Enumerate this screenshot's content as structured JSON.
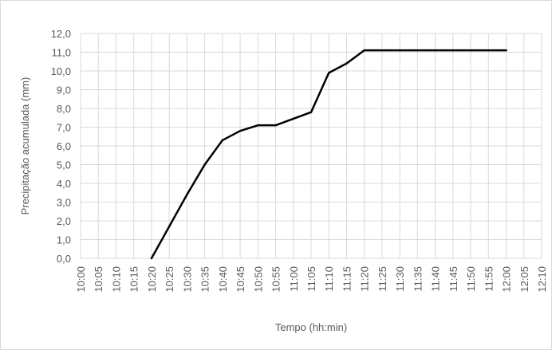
{
  "chart_data": {
    "type": "line",
    "title": "",
    "xlabel": "Tempo (hh:min)",
    "ylabel": "Precipitação acumulada (mm)",
    "ylim": [
      0,
      12
    ],
    "y_ticks": [
      "0,0",
      "1,0",
      "2,0",
      "3,0",
      "4,0",
      "5,0",
      "6,0",
      "7,0",
      "8,0",
      "9,0",
      "10,0",
      "11,0",
      "12,0"
    ],
    "x_ticks": [
      "10:00",
      "10:05",
      "10:10",
      "10:15",
      "10:20",
      "10:25",
      "10:30",
      "10:35",
      "10:40",
      "10:45",
      "10:50",
      "10:55",
      "11:00",
      "11:05",
      "11:10",
      "11:15",
      "11:20",
      "11:25",
      "11:30",
      "11:35",
      "11:40",
      "11:45",
      "11:50",
      "11:55",
      "12:00",
      "12:05",
      "12:10"
    ],
    "grid": true,
    "legend": "none",
    "series": [
      {
        "color": "#000000",
        "x": [
          "10:20",
          "10:25",
          "10:30",
          "10:35",
          "10:40",
          "10:45",
          "10:50",
          "10:55",
          "11:00",
          "11:05",
          "11:10",
          "11:15",
          "11:20",
          "11:25",
          "11:30",
          "11:35",
          "11:40",
          "11:45",
          "11:50",
          "11:55",
          "12:00"
        ],
        "y": [
          0.0,
          1.7,
          3.4,
          5.0,
          6.3,
          6.8,
          7.1,
          7.1,
          7.45,
          7.8,
          9.9,
          10.4,
          11.1,
          11.1,
          11.1,
          11.1,
          11.1,
          11.1,
          11.1,
          11.1,
          11.1
        ]
      }
    ],
    "colors": {
      "grid": "#d9d9d9",
      "line": "#000000",
      "text": "#595959"
    }
  }
}
